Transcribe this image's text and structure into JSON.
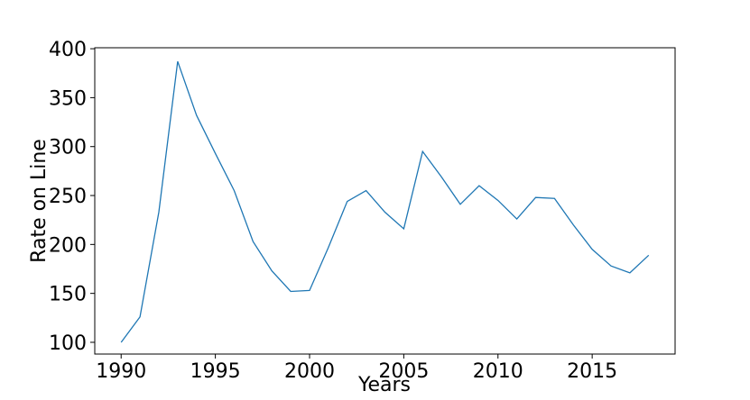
{
  "chart_data": {
    "type": "line",
    "x_label": "Years",
    "y_label": "Rate on Line",
    "x": [
      1990,
      1991,
      1992,
      1993,
      1994,
      1995,
      1996,
      1997,
      1998,
      1999,
      2000,
      2001,
      2002,
      2003,
      2004,
      2005,
      2006,
      2007,
      2008,
      2009,
      2010,
      2011,
      2012,
      2013,
      2014,
      2015,
      2016,
      2017,
      2018
    ],
    "series": [
      {
        "color": "#1f77b4",
        "values": [
          100,
          126,
          233,
          387,
          332,
          293,
          255,
          203,
          173,
          152,
          153,
          197,
          244,
          255,
          233,
          216,
          295,
          269,
          241,
          260,
          245,
          226,
          248,
          247,
          220,
          195,
          178,
          171,
          189
        ]
      }
    ],
    "xlim": [
      1988.6,
      2019.4
    ],
    "ylim": [
      88,
      401
    ],
    "xticks": [
      1990,
      1995,
      2000,
      2005,
      2010,
      2015
    ],
    "yticks": [
      100,
      150,
      200,
      250,
      300,
      350,
      400
    ]
  }
}
